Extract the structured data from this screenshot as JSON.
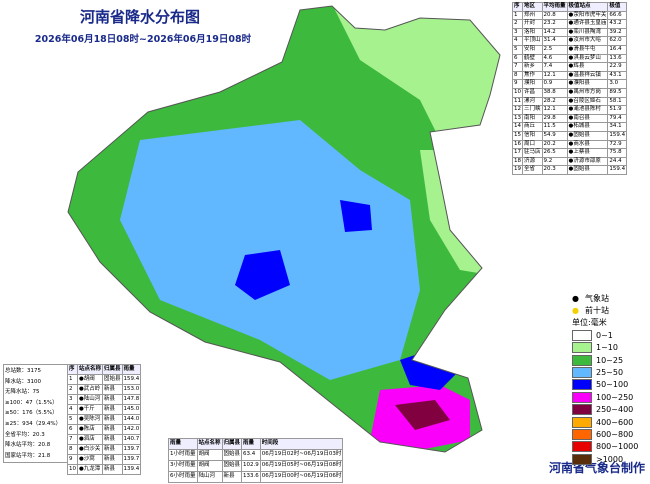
{
  "header": {
    "title": "河南省降水分布图",
    "subtitle": "2026年06月18日08时~2026年06月19日08时"
  },
  "region_table": {
    "columns": [
      "序",
      "地区",
      "平均雨量",
      "极值站点",
      "极值"
    ],
    "rows": [
      [
        "1",
        "郑州",
        "20.8",
        "●荥阳市虎牢关",
        "66.6"
      ],
      [
        "2",
        "开封",
        "23.2",
        "●通许县玉皇庙",
        "43.2"
      ],
      [
        "3",
        "洛阳",
        "14.2",
        "●栾川县陶湾",
        "39.2"
      ],
      [
        "4",
        "平顶山",
        "31.4",
        "●汝州市大峪",
        "62.0"
      ],
      [
        "5",
        "安阳",
        "2.5",
        "●滑县牛屯",
        "16.4"
      ],
      [
        "6",
        "鹤壁",
        "4.6",
        "●淇县云梦山",
        "13.6"
      ],
      [
        "7",
        "新乡",
        "7.4",
        "●辉县",
        "22.9"
      ],
      [
        "8",
        "焦作",
        "12.1",
        "●温县祥云镇",
        "43.1"
      ],
      [
        "9",
        "濮阳",
        "0.9",
        "●濮阳县",
        "3.0"
      ],
      [
        "10",
        "许昌",
        "38.8",
        "●禹州市方岗",
        "89.5"
      ],
      [
        "11",
        "漯河",
        "28.2",
        "●召陵区姬石",
        "58.1"
      ],
      [
        "12",
        "三门峡",
        "12.1",
        "●渑池县陈村",
        "51.9"
      ],
      [
        "13",
        "南阳",
        "29.8",
        "●南召县",
        "79.4"
      ],
      [
        "14",
        "商丘",
        "11.5",
        "●柘城县",
        "34.1"
      ],
      [
        "15",
        "信阳",
        "54.9",
        "●固始县",
        "159.4"
      ],
      [
        "16",
        "周口",
        "20.2",
        "●商水县",
        "72.9"
      ],
      [
        "17",
        "驻马店",
        "26.5",
        "●上蔡县",
        "75.8"
      ],
      [
        "18",
        "济源",
        "9.2",
        "●济源市邵原",
        "24.4"
      ],
      [
        "19",
        "全省",
        "20.3",
        "●固始县",
        "159.4"
      ]
    ]
  },
  "stats": [
    "总站数：3175",
    "降水站：3100",
    "无降水站：75",
    "≥100：47（1.5%）",
    "≥50：176（5.5%）",
    "≥25：934（29.4%）",
    "全省平均：20.3",
    "降水站平均：20.8",
    "国家站平均：21.8"
  ],
  "top_table": {
    "columns": [
      "序",
      "站点名称",
      "归属县",
      "雨量"
    ],
    "rows": [
      [
        "1",
        "●胡阀",
        "固始县",
        "159.4"
      ],
      [
        "2",
        "●武占岭",
        "新县",
        "153.0"
      ],
      [
        "3",
        "●陆山河",
        "新县",
        "147.8"
      ],
      [
        "4",
        "●千斤",
        "新县",
        "145.0"
      ],
      [
        "5",
        "●吴陈河",
        "新县",
        "144.0"
      ],
      [
        "6",
        "●陈店",
        "新县",
        "142.0"
      ],
      [
        "7",
        "●泗店",
        "新县",
        "140.7"
      ],
      [
        "8",
        "●白沙关",
        "新县",
        "139.7"
      ],
      [
        "9",
        "●沙窝",
        "新县",
        "139.7"
      ],
      [
        "10",
        "●九龙潭",
        "新县",
        "139.4"
      ]
    ]
  },
  "hourly_table": {
    "columns": [
      "雨量",
      "站点名称",
      "归属县",
      "雨量",
      "时间段"
    ],
    "rows": [
      [
        "1小时雨量",
        "胡阀",
        "固始县",
        "63.4",
        "06月19日02时~06月19日03时"
      ],
      [
        "3小时雨量",
        "胡阀",
        "固始县",
        "102.9",
        "06月19日05时~06月19日08时"
      ],
      [
        "6小时雨量",
        "陆山河",
        "新县",
        "133.6",
        "06月19日00时~06月19日06时"
      ]
    ]
  },
  "legend": {
    "station": "气象站",
    "top_ten": "前十站",
    "unit": "单位:毫米",
    "items": [
      {
        "label": "0~1",
        "color": "#ffffff"
      },
      {
        "label": "1~10",
        "color": "#a6f28f"
      },
      {
        "label": "10~25",
        "color": "#3dba3d"
      },
      {
        "label": "25~50",
        "color": "#61b8ff"
      },
      {
        "label": "50~100",
        "color": "#0000fe"
      },
      {
        "label": "100~250",
        "color": "#fa00fa"
      },
      {
        "label": "250~400",
        "color": "#800040"
      },
      {
        "label": "400~600",
        "color": "#ffaa00"
      },
      {
        "label": "600~800",
        "color": "#ff6600"
      },
      {
        "label": "800~1000",
        "color": "#e60000"
      },
      {
        "label": ">1000",
        "color": "#5a2d0a"
      }
    ]
  },
  "footer": "河南省气象台制作"
}
